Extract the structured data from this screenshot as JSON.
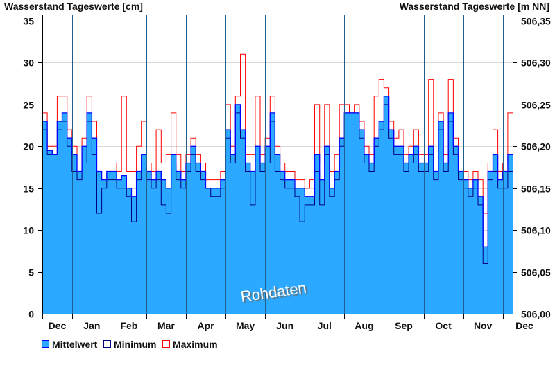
{
  "chart_data": {
    "type": "area",
    "title_left": "Wasserstand Tageswerte [cm]",
    "title_right": "Wasserstand Tageswerte [m NN]",
    "watermark": "Rohdaten",
    "ylim": [
      0,
      35
    ],
    "yticks": [
      0,
      5,
      10,
      15,
      20,
      25,
      30,
      35
    ],
    "yticks_right": [
      "506,00",
      "506,05",
      "506,10",
      "506,15",
      "506,20",
      "506,25",
      "506,30",
      "506,35"
    ],
    "months": [
      "Dec",
      "Jan",
      "Feb",
      "Mar",
      "Apr",
      "May",
      "Jun",
      "Jul",
      "Aug",
      "Sep",
      "Oct",
      "Nov",
      "Dec"
    ],
    "month_lengths": [
      6,
      8,
      7,
      8,
      8,
      8,
      8,
      8,
      8,
      8,
      8,
      8,
      2
    ],
    "grid": true,
    "legend_position": "bottom-left",
    "colors": {
      "fill": "#2ba8ff",
      "mean": "#0000ff",
      "min": "#000080",
      "max": "#ff0000",
      "month_line": "#1f5f8f",
      "grid": "#d9d9d9"
    },
    "series": [
      {
        "name": "Mittelwert",
        "values": [
          23,
          19.5,
          19,
          23,
          24,
          21,
          19,
          17,
          20,
          24,
          21,
          17,
          16,
          17,
          17,
          16,
          16.5,
          15,
          14,
          17,
          19,
          17,
          16,
          17,
          16,
          15,
          19,
          17,
          16,
          18,
          20,
          18,
          17,
          15,
          15,
          15,
          16,
          22,
          19,
          25,
          22,
          18,
          17,
          20,
          18,
          20,
          24,
          19,
          17,
          16,
          16,
          15,
          15,
          14,
          14,
          19,
          16,
          20,
          15,
          17,
          21,
          24,
          24,
          24,
          22,
          19,
          18,
          21,
          23,
          26,
          22,
          20,
          20,
          18,
          19,
          20,
          18,
          18,
          20,
          17,
          23,
          18,
          24,
          20,
          17,
          16,
          15,
          16,
          14,
          8,
          17,
          19,
          16,
          17,
          19
        ]
      },
      {
        "name": "Minimum",
        "values": [
          22,
          19,
          19,
          22,
          23,
          20,
          17,
          16,
          18,
          23,
          19,
          12,
          15,
          16,
          16,
          15,
          15,
          14,
          11,
          16,
          18,
          16,
          15,
          16,
          13,
          12,
          18,
          16,
          15,
          17,
          19,
          17,
          16,
          15,
          14,
          14,
          15,
          21,
          18,
          24,
          21,
          17,
          13,
          18,
          17,
          18,
          23,
          17,
          16,
          15,
          15,
          14,
          11,
          13,
          13,
          17,
          13,
          19,
          14,
          16,
          20,
          24,
          24,
          24,
          21,
          18,
          17,
          20,
          22,
          25,
          21,
          19,
          19,
          17,
          18,
          19,
          17,
          17,
          19,
          16,
          22,
          17,
          23,
          19,
          16,
          15,
          14,
          15,
          13,
          6,
          16,
          17,
          15,
          15,
          17
        ]
      },
      {
        "name": "Maximum",
        "values": [
          24,
          20,
          20,
          26,
          26,
          22,
          20,
          18,
          21,
          26,
          23,
          18,
          18,
          18,
          18,
          17,
          26,
          17,
          17,
          20,
          23,
          18,
          17,
          22,
          18,
          19,
          24,
          19,
          17,
          19,
          21,
          19,
          18,
          16,
          16,
          16,
          17,
          25,
          20,
          26,
          31,
          19,
          19,
          26,
          19,
          21,
          26,
          20,
          18,
          17,
          17,
          16,
          16,
          15,
          16,
          25,
          18,
          25,
          17,
          19,
          25,
          25,
          24,
          25,
          23,
          20,
          19,
          26,
          28,
          27,
          23,
          21,
          22,
          19,
          20,
          22,
          19,
          19,
          28,
          18,
          24,
          19,
          28,
          21,
          18,
          17,
          16,
          17,
          16,
          12,
          18,
          22,
          17,
          18,
          24
        ]
      }
    ]
  }
}
